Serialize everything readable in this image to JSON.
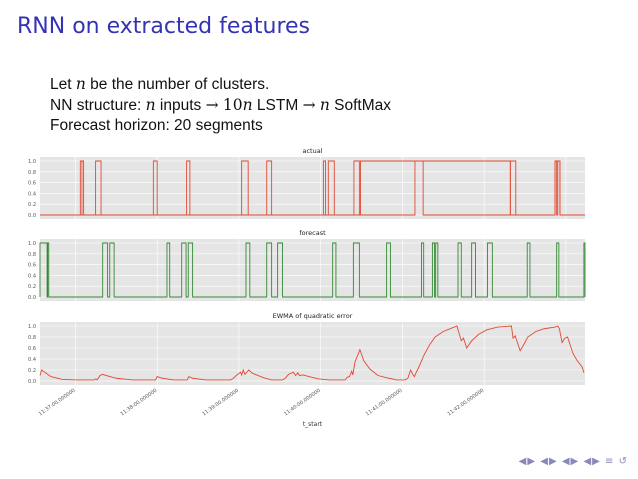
{
  "slide": {
    "title": "RNN on extracted features",
    "line1": {
      "pre": "Let ",
      "var": "n",
      "post": " be the number of clusters."
    },
    "line2": {
      "pre": "NN structure: ",
      "var1": "n",
      "mid1": " inputs ",
      "arrow1": "→",
      "num": "10",
      "var2": "n",
      "mid2": " LSTM ",
      "arrow2": "→",
      "var3": "n",
      "post": " SoftMax"
    },
    "line3": "Forecast horizon: 20 segments"
  },
  "colors": {
    "title": "#3333b3",
    "actual": "#e24a33",
    "forecast": "#348a34",
    "ewma": "#e24a33",
    "plot_bg": "#e5e5e5",
    "grid": "#ffffff"
  },
  "chart_data": [
    {
      "type": "line",
      "title": "actual",
      "ylim": [
        0.0,
        1.0
      ],
      "yticks": [
        "0.0",
        "0.2",
        "0.4",
        "0.6",
        "0.8",
        "1.0"
      ],
      "xlim": [
        0,
        100
      ],
      "grid": true,
      "pulses": [
        [
          7.4,
          8.0
        ],
        [
          10.2,
          11.2
        ],
        [
          20.8,
          21.5
        ],
        [
          26.9,
          27.5
        ],
        [
          37.0,
          38.2
        ],
        [
          41.6,
          42.5
        ],
        [
          52.9,
          54.0
        ],
        [
          57.6,
          58.6
        ],
        [
          68.8,
          70.3
        ],
        [
          86.3,
          87.3
        ],
        [
          94.5,
          95.4
        ]
      ],
      "raw_steps": [
        [
          0,
          0
        ],
        [
          52.0,
          0
        ],
        [
          52.0,
          1
        ],
        [
          52.4,
          1
        ],
        [
          52.4,
          0
        ],
        [
          58.8,
          0
        ],
        [
          58.8,
          1
        ],
        [
          86.3,
          1
        ],
        [
          86.3,
          0
        ],
        [
          94.5,
          0
        ],
        [
          94.5,
          1
        ],
        [
          94.8,
          1
        ],
        [
          94.8,
          0
        ],
        [
          95.0,
          0
        ],
        [
          95.0,
          1
        ],
        [
          95.4,
          1
        ],
        [
          95.4,
          0
        ],
        [
          100,
          0
        ]
      ],
      "first_pulse_doubled": true
    },
    {
      "type": "line",
      "title": "forecast",
      "ylim": [
        0.0,
        1.0
      ],
      "yticks": [
        "0.0",
        "0.2",
        "0.4",
        "0.6",
        "0.8",
        "1.0"
      ],
      "xlim": [
        0,
        100
      ],
      "grid": true,
      "pulses": [
        [
          0.0,
          1.3
        ],
        [
          1.4,
          1.6
        ],
        [
          11.5,
          12.4
        ],
        [
          12.8,
          13.6
        ],
        [
          23.3,
          23.8
        ],
        [
          26.0,
          26.8
        ],
        [
          27.2,
          28.0
        ],
        [
          37.8,
          38.5
        ],
        [
          41.6,
          42.5
        ],
        [
          43.6,
          44.5
        ],
        [
          53.7,
          54.3
        ],
        [
          57.5,
          58.6
        ],
        [
          63.6,
          64.3
        ],
        [
          70.0,
          70.4
        ],
        [
          72.0,
          72.4
        ],
        [
          72.6,
          73.0
        ],
        [
          76.7,
          77.3
        ],
        [
          79.2,
          79.9
        ],
        [
          82.1,
          83.0
        ],
        [
          89.4,
          89.9
        ],
        [
          94.8,
          95.2
        ],
        [
          99.8,
          100.0
        ]
      ]
    },
    {
      "type": "line",
      "title": "EWMA of quadratic error",
      "ylim": [
        0.0,
        1.0
      ],
      "yticks": [
        "0.0",
        "0.2",
        "0.4",
        "0.6",
        "0.8",
        "1.0"
      ],
      "xlim": [
        0,
        100
      ],
      "xlabel": "t_start",
      "xticks": [
        {
          "x": 6.5,
          "label": "11:37:00.000000"
        },
        {
          "x": 21.5,
          "label": "11:38:00.000000"
        },
        {
          "x": 36.5,
          "label": "11:39:00.000000"
        },
        {
          "x": 51.5,
          "label": "11:40:00.000000"
        },
        {
          "x": 66.5,
          "label": "11:41:00.000000"
        },
        {
          "x": 81.5,
          "label": "11:42:00.000000"
        }
      ],
      "grid": true,
      "points": [
        [
          0,
          0.1
        ],
        [
          0.3,
          0.2
        ],
        [
          2,
          0.08
        ],
        [
          4,
          0.03
        ],
        [
          6.5,
          0.02
        ],
        [
          8.5,
          0.02
        ],
        [
          10,
          0.02
        ],
        [
          10.2,
          0.04
        ],
        [
          10.5,
          0.02
        ],
        [
          11.0,
          0.1
        ],
        [
          11.5,
          0.12
        ],
        [
          12.5,
          0.09
        ],
        [
          14,
          0.05
        ],
        [
          17,
          0.02
        ],
        [
          20.5,
          0.02
        ],
        [
          21.2,
          0.02
        ],
        [
          21.5,
          0.08
        ],
        [
          22.5,
          0.05
        ],
        [
          24.5,
          0.02
        ],
        [
          27,
          0.02
        ],
        [
          27.3,
          0.08
        ],
        [
          28,
          0.05
        ],
        [
          30.5,
          0.02
        ],
        [
          35,
          0.02
        ],
        [
          35.5,
          0.05
        ],
        [
          36,
          0.1
        ],
        [
          36.8,
          0.16
        ],
        [
          37.0,
          0.11
        ],
        [
          37.3,
          0.2
        ],
        [
          37.6,
          0.12
        ],
        [
          38.3,
          0.2
        ],
        [
          39,
          0.14
        ],
        [
          41,
          0.06
        ],
        [
          42.5,
          0.02
        ],
        [
          44.5,
          0.02
        ],
        [
          45,
          0.05
        ],
        [
          45.6,
          0.12
        ],
        [
          46.5,
          0.16
        ],
        [
          46.9,
          0.1
        ],
        [
          47.3,
          0.15
        ],
        [
          47.6,
          0.1
        ],
        [
          48.3,
          0.11
        ],
        [
          49,
          0.09
        ],
        [
          51,
          0.04
        ],
        [
          53,
          0.02
        ],
        [
          55.5,
          0.02
        ],
        [
          56,
          0.02
        ],
        [
          56.4,
          0.07
        ],
        [
          56.8,
          0.08
        ],
        [
          57.2,
          0.18
        ],
        [
          57.4,
          0.11
        ],
        [
          57.8,
          0.35
        ],
        [
          58.3,
          0.47
        ],
        [
          58.7,
          0.57
        ],
        [
          59.4,
          0.37
        ],
        [
          60.5,
          0.22
        ],
        [
          62,
          0.1
        ],
        [
          64,
          0.05
        ],
        [
          65.5,
          0.02
        ],
        [
          67,
          0.02
        ],
        [
          67.5,
          0.05
        ],
        [
          68,
          0.2
        ],
        [
          68.4,
          0.12
        ],
        [
          68.7,
          0.08
        ],
        [
          69.0,
          0.15
        ],
        [
          69.5,
          0.25
        ],
        [
          70.5,
          0.48
        ],
        [
          71.5,
          0.66
        ],
        [
          72.5,
          0.8
        ],
        [
          74,
          0.9
        ],
        [
          75.5,
          0.96
        ],
        [
          76.5,
          1.0
        ],
        [
          77.3,
          0.73
        ],
        [
          77.7,
          0.78
        ],
        [
          78.3,
          0.6
        ],
        [
          79.2,
          0.73
        ],
        [
          80.5,
          0.85
        ],
        [
          82,
          0.93
        ],
        [
          84,
          0.98
        ],
        [
          86.5,
          1.0
        ],
        [
          86.8,
          0.78
        ],
        [
          87.2,
          0.82
        ],
        [
          87.6,
          0.7
        ],
        [
          88.1,
          0.55
        ],
        [
          88.7,
          0.65
        ],
        [
          89.5,
          0.8
        ],
        [
          91,
          0.9
        ],
        [
          92.5,
          0.95
        ],
        [
          94.5,
          0.98
        ],
        [
          95,
          1.0
        ],
        [
          95.3,
          0.95
        ],
        [
          95.8,
          0.7
        ],
        [
          96.3,
          0.78
        ],
        [
          96.8,
          0.8
        ],
        [
          97.2,
          0.68
        ],
        [
          97.8,
          0.5
        ],
        [
          98.5,
          0.38
        ],
        [
          99.5,
          0.25
        ],
        [
          99.8,
          0.15
        ]
      ]
    }
  ],
  "nav": {
    "symbols": [
      "◀",
      "▶",
      "◀",
      "▶",
      "◀",
      "▶",
      "◀",
      "▶",
      "≡",
      "↺"
    ]
  }
}
